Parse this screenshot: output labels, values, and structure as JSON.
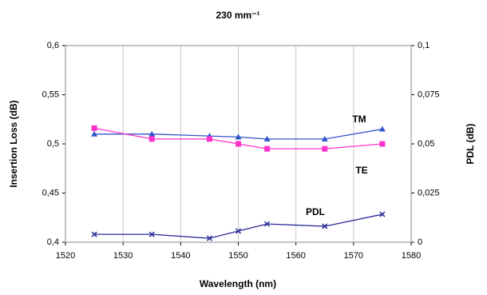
{
  "chart_data": {
    "type": "line",
    "title": "230 mm⁻¹",
    "x_label": "Wavelength (nm)",
    "y_label": "Insertion Loss (dB)",
    "y2_label": "PDL (dB)",
    "x": [
      1525,
      1535,
      1545,
      1550,
      1555,
      1565,
      1575
    ],
    "series": [
      {
        "name": "TM",
        "color": "#3355cc",
        "marker": "triangle",
        "values": [
          0.51,
          0.51,
          0.508,
          0.507,
          0.505,
          0.505,
          0.515
        ]
      },
      {
        "name": "TE",
        "color": "#ff33cc",
        "marker": "square",
        "values": [
          0.516,
          0.505,
          0.505,
          0.5,
          0.495,
          0.495,
          0.5
        ]
      },
      {
        "name": "PDL",
        "color": "#2a2a99",
        "marker": "x",
        "axis": "y2",
        "values": [
          0.004,
          0.004,
          0.002,
          0.0057,
          0.0093,
          0.0081,
          0.0142
        ]
      }
    ],
    "xlim": [
      1520,
      1580
    ],
    "xticks": [
      1520,
      1530,
      1540,
      1550,
      1560,
      1570,
      1580
    ],
    "ylim": [
      0.4,
      0.6
    ],
    "yticks": [
      {
        "value": 0.4,
        "label": "0,4"
      },
      {
        "value": 0.45,
        "label": "0,45"
      },
      {
        "value": 0.5,
        "label": "0,5"
      },
      {
        "value": 0.55,
        "label": "0,55"
      },
      {
        "value": 0.6,
        "label": "0,6"
      }
    ],
    "y2lim": [
      0,
      0.1
    ],
    "y2ticks": [
      0,
      {
        "value": 0.025,
        "label": "0,025"
      },
      {
        "value": 0.05,
        "label": "0,05"
      },
      {
        "value": 0.075,
        "label": "0,075"
      },
      {
        "value": 0.1,
        "label": "0,1"
      }
    ],
    "grid": "x"
  }
}
